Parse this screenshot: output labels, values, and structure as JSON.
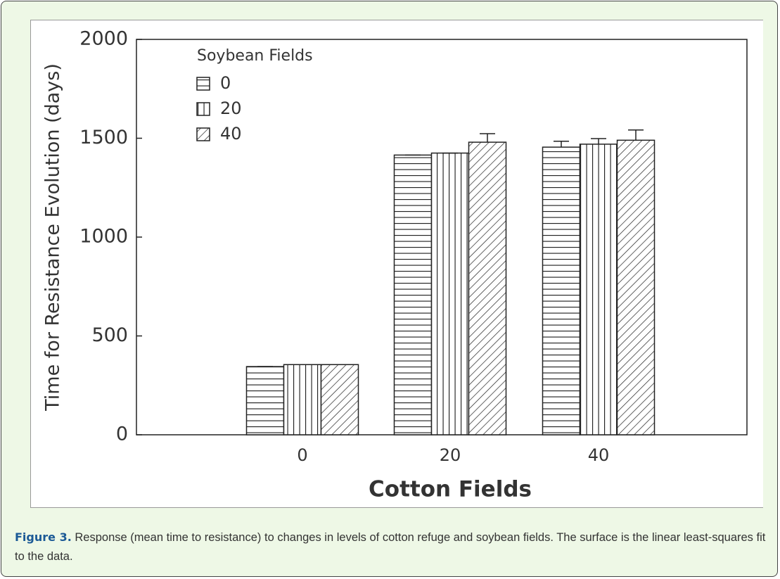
{
  "chart_data": {
    "type": "bar",
    "x_label": "Cotton Fields",
    "y_label": "Time for Resistance Evolution (days)",
    "legend_title": "Soybean Fields",
    "legend": "upper left",
    "categories": [
      "0",
      "20",
      "40"
    ],
    "series": [
      {
        "name": "0",
        "color": "#222222",
        "hatch": "horizontal",
        "values": [
          345,
          1415,
          1455
        ],
        "errors": [
          0,
          0,
          30
        ]
      },
      {
        "name": "20",
        "color": "#222222",
        "hatch": "vertical",
        "values": [
          355,
          1425,
          1470
        ],
        "errors": [
          0,
          0,
          28
        ]
      },
      {
        "name": "40",
        "color": "#222222",
        "hatch": "diagonal",
        "values": [
          355,
          1480,
          1490
        ],
        "errors": [
          0,
          43,
          52
        ]
      }
    ],
    "ylim": [
      0,
      2000
    ],
    "yticks": [
      0,
      500,
      1000,
      1500,
      2000
    ]
  },
  "caption": {
    "label": "Figure 3.",
    "text": "Response (mean time to resistance) to changes in levels of cotton refuge and soybean fields. The surface is the linear least-squares fit to the data."
  }
}
